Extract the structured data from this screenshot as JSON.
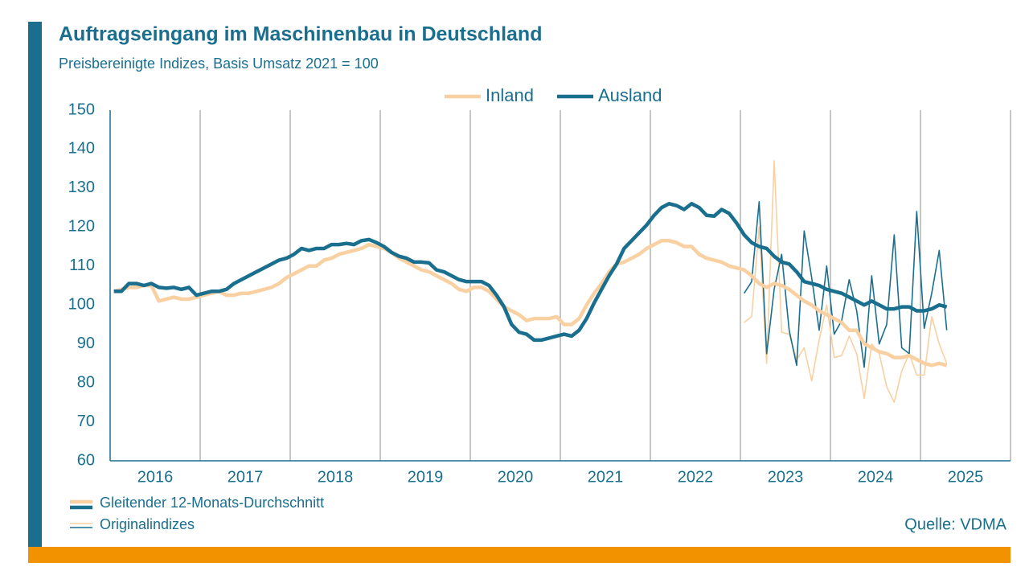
{
  "chart_data": {
    "type": "line",
    "title": "Auftragseingang im Maschinenbau in Deutschland",
    "subtitle": "Preisbereinigte Indizes, Basis Umsatz 2021 = 100",
    "source": "Quelle: VDMA",
    "legend_styles": [
      "Gleitender 12-Monats-Durchschnitt",
      "Originalindizes"
    ],
    "categories": [
      "2016",
      null,
      null,
      null,
      null,
      null,
      null,
      null,
      null,
      null,
      null,
      null,
      "2017",
      null,
      null,
      null,
      null,
      null,
      null,
      null,
      null,
      null,
      null,
      null,
      "2018",
      null,
      null,
      null,
      null,
      null,
      null,
      null,
      null,
      null,
      null,
      null,
      "2019",
      null,
      null,
      null,
      null,
      null,
      null,
      null,
      null,
      null,
      null,
      null,
      "2020",
      null,
      null,
      null,
      null,
      null,
      null,
      null,
      null,
      null,
      null,
      null,
      "2021",
      null,
      null,
      null,
      null,
      null,
      null,
      null,
      null,
      null,
      null,
      null,
      "2022",
      null,
      null,
      null,
      null,
      null,
      null,
      null,
      null,
      null,
      null,
      null,
      "2023",
      null,
      null,
      null,
      null,
      null,
      null,
      null,
      null,
      null,
      null,
      null,
      "2024",
      null,
      null,
      null,
      null,
      null,
      null,
      null,
      null,
      null,
      null,
      null,
      "2025",
      null,
      null,
      null
    ],
    "ylim": [
      60,
      150
    ],
    "yticks": [
      60,
      70,
      80,
      90,
      100,
      110,
      120,
      130,
      140,
      150
    ],
    "series": [
      {
        "name": "Inland",
        "color": "#f9d0a2",
        "values": [
          103.5,
          104,
          104.5,
          104.5,
          105,
          105,
          101,
          101.5,
          102,
          101.5,
          101.5,
          102,
          102.5,
          103,
          103.5,
          102.5,
          102.5,
          103,
          103,
          103.5,
          104,
          104.5,
          105.5,
          107,
          108,
          109,
          110,
          110,
          111.5,
          112,
          113,
          113.5,
          114,
          114.5,
          115.5,
          115,
          114.5,
          113.5,
          112,
          111,
          110,
          109,
          108.5,
          107.5,
          106.5,
          105.5,
          104,
          103.5,
          104.5,
          104.5,
          103.5,
          101.5,
          99.5,
          98.5,
          97.5,
          96,
          96.5,
          96.5,
          96.5,
          97,
          95,
          95,
          96.5,
          100,
          103,
          105.5,
          108.5,
          110.5,
          111,
          112,
          113,
          114.5,
          115.5,
          116.5,
          116.5,
          116,
          115,
          115,
          113,
          112,
          111.5,
          111,
          110,
          109.5,
          109,
          107.5,
          105.5,
          104.5,
          105.5,
          105,
          104,
          102.5,
          101,
          100,
          98.5,
          97.5,
          96.5,
          95.5,
          93.5,
          93.5,
          90,
          89,
          88,
          87.5,
          86.5,
          86.5,
          87,
          86,
          85,
          84.5,
          85,
          84.5
        ],
        "original_values": [
          null,
          null,
          null,
          null,
          null,
          null,
          null,
          null,
          null,
          null,
          null,
          null,
          null,
          null,
          null,
          null,
          null,
          null,
          null,
          null,
          null,
          null,
          null,
          null,
          null,
          null,
          null,
          null,
          null,
          null,
          null,
          null,
          null,
          null,
          null,
          null,
          null,
          null,
          null,
          null,
          null,
          null,
          null,
          null,
          null,
          null,
          null,
          null,
          null,
          null,
          null,
          null,
          null,
          null,
          null,
          null,
          null,
          null,
          null,
          null,
          null,
          null,
          null,
          null,
          null,
          null,
          null,
          null,
          null,
          null,
          null,
          null,
          null,
          null,
          null,
          null,
          null,
          null,
          null,
          null,
          null,
          null,
          null,
          null,
          95.5,
          97,
          120,
          85,
          137,
          93,
          92.5,
          86,
          89,
          80.5,
          91,
          100,
          86.5,
          87,
          92,
          87.5,
          76,
          90,
          87.5,
          79,
          75,
          83,
          87.5,
          82,
          82,
          97,
          90,
          85
        ]
      },
      {
        "name": "Ausland",
        "color": "#1a6f8f",
        "values": [
          103.5,
          103.5,
          105.5,
          105.5,
          105,
          105.5,
          104.5,
          104.3,
          104.5,
          104,
          104.5,
          102.5,
          103,
          103.5,
          103.5,
          104,
          105.5,
          106.5,
          107.5,
          108.5,
          109.5,
          110.5,
          111.5,
          112,
          113,
          114.5,
          114,
          114.5,
          114.5,
          115.5,
          115.5,
          115.8,
          115.5,
          116.5,
          116.8,
          116,
          115,
          113.5,
          112.5,
          112,
          111,
          111,
          110.8,
          109,
          108.5,
          107.5,
          106.5,
          106,
          106,
          106,
          105,
          102.5,
          99.5,
          95,
          93,
          92.5,
          91,
          91,
          91.5,
          92,
          92.5,
          92,
          93.5,
          96.5,
          100.5,
          104,
          107.5,
          110.5,
          114.5,
          116.5,
          118.5,
          120.5,
          123,
          125,
          126,
          125.5,
          124.5,
          126,
          125,
          123,
          122.8,
          124.5,
          123.5,
          121,
          118,
          116,
          115,
          114.5,
          112.5,
          111,
          110.5,
          108.5,
          106,
          105.5,
          105,
          104,
          103.5,
          103,
          102,
          101,
          100,
          101,
          100,
          99,
          99,
          99.5,
          99.5,
          98.5,
          98.5,
          99,
          100,
          99.5
        ],
        "original_values": [
          null,
          null,
          null,
          null,
          null,
          null,
          null,
          null,
          null,
          null,
          null,
          null,
          null,
          null,
          null,
          null,
          null,
          null,
          null,
          null,
          null,
          null,
          null,
          null,
          null,
          null,
          null,
          null,
          null,
          null,
          null,
          null,
          null,
          null,
          null,
          null,
          null,
          null,
          null,
          null,
          null,
          null,
          null,
          null,
          null,
          null,
          null,
          null,
          null,
          null,
          null,
          null,
          null,
          null,
          null,
          null,
          null,
          null,
          null,
          null,
          null,
          null,
          null,
          null,
          null,
          null,
          null,
          null,
          null,
          null,
          null,
          null,
          null,
          null,
          null,
          null,
          null,
          null,
          null,
          null,
          null,
          null,
          null,
          null,
          103,
          106,
          126.5,
          87.5,
          104,
          113,
          93.5,
          84.5,
          119,
          107,
          93.5,
          110,
          92.5,
          96,
          106.5,
          98.5,
          84,
          107.5,
          90,
          95,
          118,
          89,
          87.5,
          124,
          94,
          103,
          114,
          93.5
        ]
      }
    ]
  }
}
